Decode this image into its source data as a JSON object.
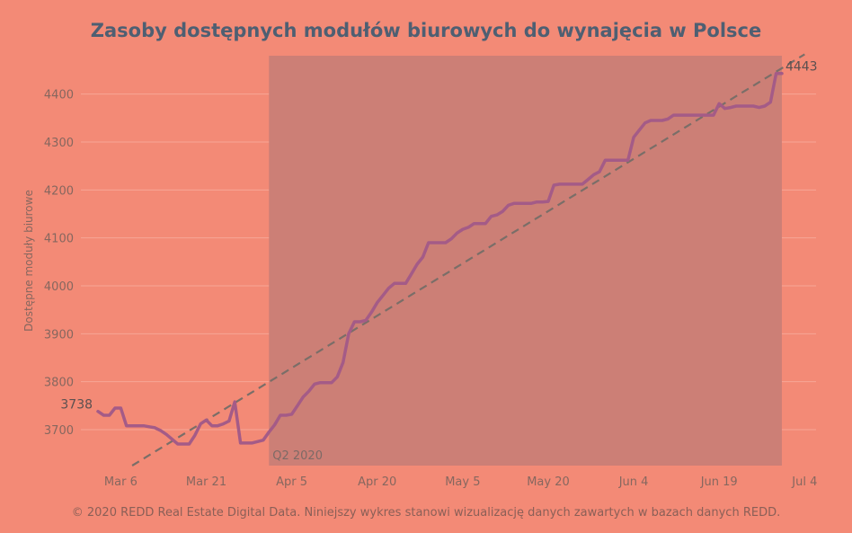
{
  "chart_data": {
    "type": "line",
    "title": "Zasoby dostępnych modułów biurowych do wynajęcia w Polsce",
    "ylabel": "Dostępne moduły biurowe",
    "xlabel": "",
    "x_ticks": [
      "Mar 6",
      "Mar 21",
      "Apr 5",
      "Apr 20",
      "May 5",
      "May 20",
      "Jun 4",
      "Jun 19",
      "Jul 4"
    ],
    "y_ticks": [
      3700,
      3800,
      3900,
      4000,
      4100,
      4200,
      4300,
      4400
    ],
    "xlim": [
      "2020-02-28",
      "2020-07-06"
    ],
    "ylim": [
      3625,
      4480
    ],
    "grid": true,
    "band": {
      "label": "Q2 2020",
      "start": "2020-04-01",
      "end": "2020-06-30"
    },
    "series": [
      {
        "x": [
          "2020-03-02",
          "2020-03-03",
          "2020-03-04",
          "2020-03-05",
          "2020-03-06",
          "2020-03-07",
          "2020-03-08",
          "2020-03-09",
          "2020-03-10",
          "2020-03-11",
          "2020-03-12",
          "2020-03-13",
          "2020-03-14",
          "2020-03-15",
          "2020-03-16",
          "2020-03-17",
          "2020-03-18",
          "2020-03-19",
          "2020-03-20",
          "2020-03-21",
          "2020-03-22",
          "2020-03-23",
          "2020-03-24",
          "2020-03-25",
          "2020-03-26",
          "2020-03-27",
          "2020-03-28",
          "2020-03-29",
          "2020-03-30",
          "2020-03-31",
          "2020-04-01",
          "2020-04-02",
          "2020-04-03",
          "2020-04-04",
          "2020-04-05",
          "2020-04-06",
          "2020-04-07",
          "2020-04-08",
          "2020-04-09",
          "2020-04-10",
          "2020-04-11",
          "2020-04-12",
          "2020-04-13",
          "2020-04-14",
          "2020-04-15",
          "2020-04-16",
          "2020-04-17",
          "2020-04-18",
          "2020-04-19",
          "2020-04-20",
          "2020-04-21",
          "2020-04-22",
          "2020-04-23",
          "2020-04-24",
          "2020-04-25",
          "2020-04-26",
          "2020-04-27",
          "2020-04-28",
          "2020-04-29",
          "2020-04-30",
          "2020-05-01",
          "2020-05-02",
          "2020-05-03",
          "2020-05-04",
          "2020-05-05",
          "2020-05-06",
          "2020-05-07",
          "2020-05-08",
          "2020-05-09",
          "2020-05-10",
          "2020-05-11",
          "2020-05-12",
          "2020-05-13",
          "2020-05-14",
          "2020-05-15",
          "2020-05-16",
          "2020-05-17",
          "2020-05-18",
          "2020-05-19",
          "2020-05-20",
          "2020-05-21",
          "2020-05-22",
          "2020-05-23",
          "2020-05-24",
          "2020-05-25",
          "2020-05-26",
          "2020-05-27",
          "2020-05-28",
          "2020-05-29",
          "2020-05-30",
          "2020-05-31",
          "2020-06-01",
          "2020-06-02",
          "2020-06-03",
          "2020-06-04",
          "2020-06-05",
          "2020-06-06",
          "2020-06-07",
          "2020-06-08",
          "2020-06-09",
          "2020-06-10",
          "2020-06-11",
          "2020-06-12",
          "2020-06-13",
          "2020-06-14",
          "2020-06-15",
          "2020-06-16",
          "2020-06-17",
          "2020-06-18",
          "2020-06-19",
          "2020-06-20",
          "2020-06-21",
          "2020-06-22",
          "2020-06-23",
          "2020-06-24",
          "2020-06-25",
          "2020-06-26",
          "2020-06-27",
          "2020-06-28",
          "2020-06-29",
          "2020-06-30"
        ],
        "values": [
          3738,
          3730,
          3730,
          3745,
          3745,
          3708,
          3708,
          3708,
          3708,
          3706,
          3704,
          3698,
          3690,
          3680,
          3670,
          3670,
          3670,
          3688,
          3712,
          3720,
          3708,
          3708,
          3712,
          3718,
          3758,
          3672,
          3672,
          3672,
          3675,
          3678,
          3695,
          3710,
          3730,
          3730,
          3732,
          3750,
          3768,
          3780,
          3795,
          3798,
          3798,
          3798,
          3810,
          3840,
          3900,
          3925,
          3925,
          3928,
          3945,
          3965,
          3980,
          3995,
          4005,
          4005,
          4005,
          4025,
          4045,
          4060,
          4090,
          4090,
          4090,
          4090,
          4098,
          4110,
          4118,
          4122,
          4130,
          4130,
          4130,
          4145,
          4148,
          4155,
          4168,
          4172,
          4172,
          4172,
          4172,
          4175,
          4175,
          4176,
          4210,
          4212,
          4212,
          4212,
          4212,
          4212,
          4222,
          4232,
          4238,
          4262,
          4262,
          4262,
          4262,
          4262,
          4310,
          4325,
          4340,
          4345,
          4345,
          4345,
          4348,
          4356,
          4356,
          4356,
          4356,
          4356,
          4356,
          4356,
          4356,
          4380,
          4370,
          4372,
          4375,
          4375,
          4375,
          4375,
          4372,
          4375,
          4383,
          4443,
          4443
        ]
      }
    ],
    "trend_line": {
      "x": [
        "2020-03-08",
        "2020-07-04"
      ],
      "values": [
        3625,
        4483
      ]
    },
    "data_labels": [
      {
        "text": "3738",
        "x": "2020-03-02",
        "value": 3738
      },
      {
        "text": "4443",
        "x": "2020-06-30",
        "value": 4443
      }
    ],
    "colors": {
      "background": "#f38a76",
      "band": "#cc7f76",
      "line": "#a45b87",
      "trend": "#7a6e68",
      "grid": "#f7a696",
      "title": "#4e5f72"
    }
  },
  "footer": "© 2020 REDD Real Estate Digital Data. Niniejszy wykres stanowi wizualizację danych zawartych w bazach danych REDD."
}
